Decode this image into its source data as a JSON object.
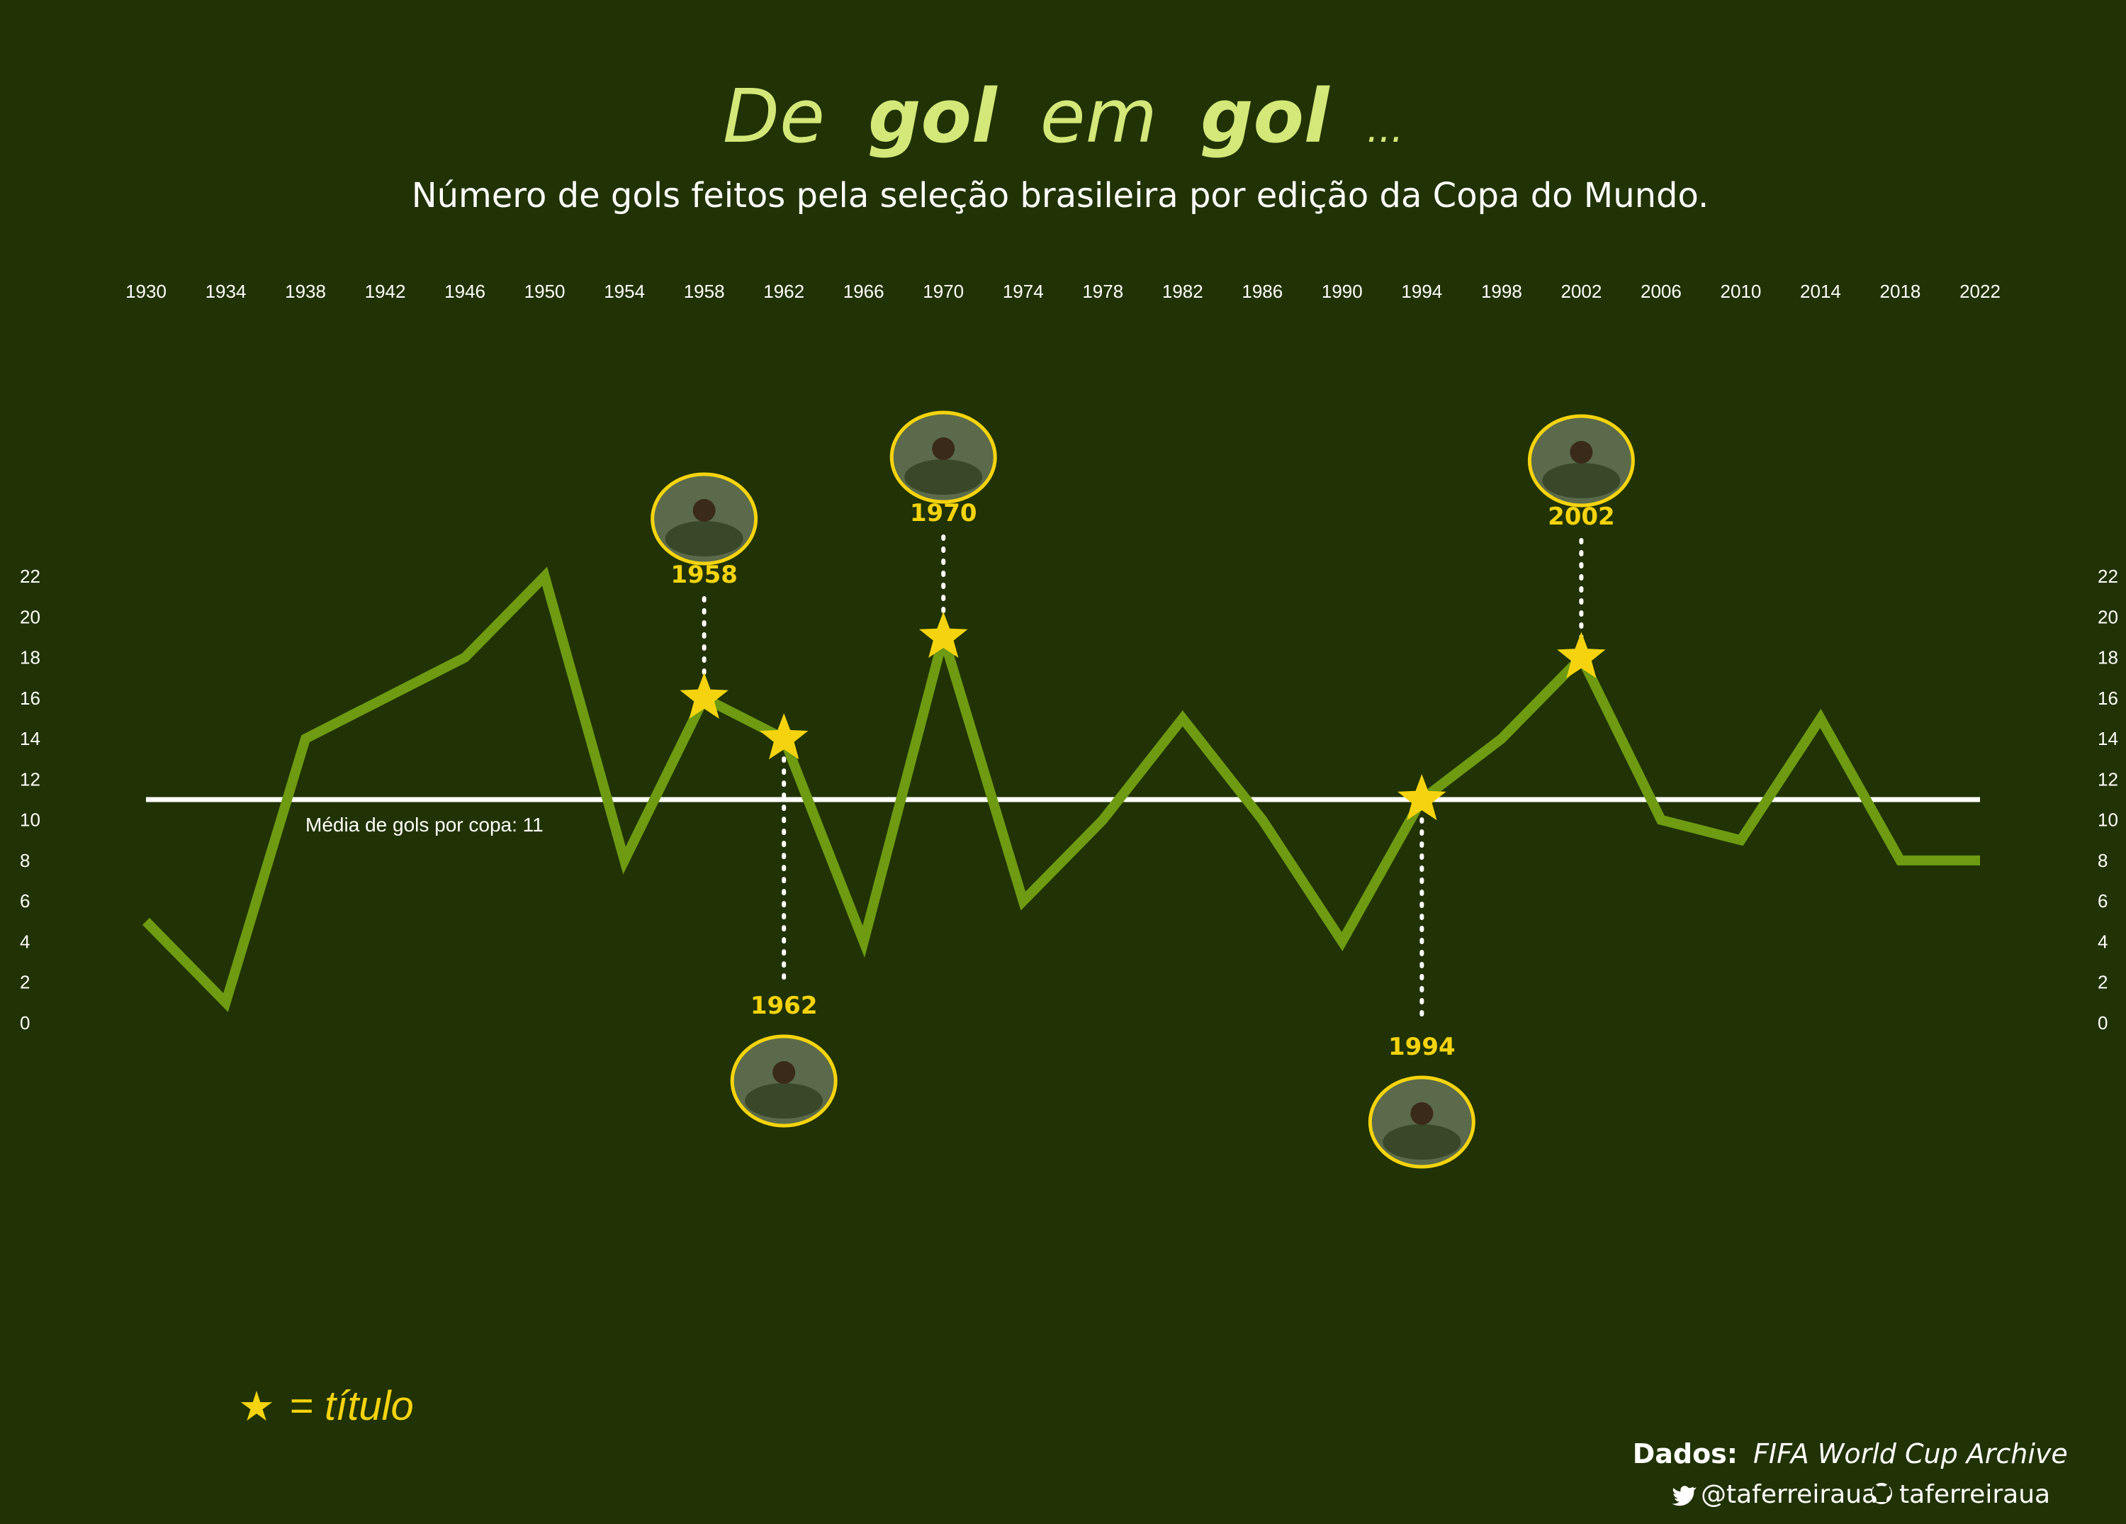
{
  "header": {
    "title_part1": "De",
    "title_bold1": "gol",
    "title_part2": "em",
    "title_bold2": "gol",
    "title_ellipsis": "...",
    "subtitle": "Número de gols feitos pela seleção brasileira por edição da Copa do Mundo."
  },
  "chart_data": {
    "type": "line",
    "title": "De gol em gol ...",
    "subtitle": "Número de gols feitos pela seleção brasileira por edição da Copa do Mundo.",
    "xlabel": "",
    "ylabel": "",
    "x": [
      1930,
      1934,
      1938,
      1942,
      1946,
      1950,
      1954,
      1958,
      1962,
      1966,
      1970,
      1974,
      1978,
      1982,
      1986,
      1990,
      1994,
      1998,
      2002,
      2006,
      2010,
      2014,
      2018,
      2022
    ],
    "x_labels": [
      "1930",
      "1934",
      "1938",
      "1942",
      "1946",
      "1950",
      "1954",
      "1958",
      "1962",
      "1966",
      "1970",
      "1974",
      "1978",
      "1982",
      "1986",
      "1990",
      "1994",
      "1998",
      "2002",
      "2006",
      "2010",
      "2014",
      "2018",
      "2022"
    ],
    "y": [
      5,
      1,
      14,
      16,
      18,
      22,
      8,
      16,
      14,
      4,
      19,
      6,
      10,
      15,
      10,
      4,
      11,
      14,
      18,
      10,
      9,
      15,
      8,
      8
    ],
    "ylim": [
      0,
      22
    ],
    "yticks": [
      "0",
      "2",
      "4",
      "6",
      "8",
      "10",
      "12",
      "14",
      "16",
      "18",
      "20",
      "22"
    ],
    "ytick_values": [
      0,
      2,
      4,
      6,
      8,
      10,
      12,
      14,
      16,
      18,
      20,
      22
    ],
    "grid": false,
    "mean": 11,
    "mean_label": "Média de gols por copa: 11",
    "titles": [
      {
        "year": 1958,
        "label": "1958",
        "goals": 16,
        "side": "above"
      },
      {
        "year": 1962,
        "label": "1962",
        "goals": 14,
        "side": "below"
      },
      {
        "year": 1970,
        "label": "1970",
        "goals": 19,
        "side": "above"
      },
      {
        "year": 1994,
        "label": "1994",
        "goals": 11,
        "side": "below"
      },
      {
        "year": 2002,
        "label": "2002",
        "goals": 18,
        "side": "above"
      }
    ]
  },
  "legend": {
    "star_symbol": "★",
    "label": "= título"
  },
  "footer": {
    "source_label": "Dados:",
    "source_value": "FIFA World Cup Archive",
    "twitter_handle": "@taferreiraua",
    "github_handle": "taferreiraua"
  },
  "colors": {
    "background": "#213304",
    "line": "#6e9b12",
    "title": "#d4e87a",
    "star": "#f5d40f",
    "text": "#ffffff",
    "mean_line": "#ffffff"
  }
}
